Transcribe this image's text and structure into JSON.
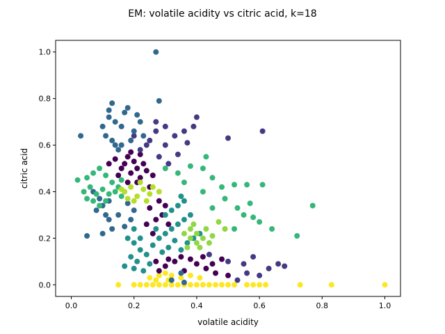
{
  "chart_data": {
    "type": "scatter",
    "title": "EM: volatile acidity vs citric acid, k=18",
    "xlabel": "volatile acidity",
    "ylabel": "citric acid",
    "xlim": [
      -0.05,
      1.05
    ],
    "ylim": [
      -0.05,
      1.05
    ],
    "xticks": [
      "0.0",
      "0.2",
      "0.4",
      "0.6",
      "0.8",
      "1.0"
    ],
    "yticks": [
      "0.0",
      "0.2",
      "0.4",
      "0.6",
      "0.8",
      "1.0"
    ],
    "grid": false,
    "legend": "none",
    "series": [
      {
        "color": "#fde725",
        "points": [
          [
            0.15,
            0.0
          ],
          [
            0.2,
            0.0
          ],
          [
            0.22,
            0.0
          ],
          [
            0.24,
            0.0
          ],
          [
            0.26,
            0.0
          ],
          [
            0.28,
            0.0
          ],
          [
            0.3,
            0.0
          ],
          [
            0.32,
            0.0
          ],
          [
            0.34,
            0.0
          ],
          [
            0.36,
            0.0
          ],
          [
            0.38,
            0.0
          ],
          [
            0.4,
            0.0
          ],
          [
            0.42,
            0.0
          ],
          [
            0.44,
            0.0
          ],
          [
            0.46,
            0.0
          ],
          [
            0.48,
            0.0
          ],
          [
            0.5,
            0.0
          ],
          [
            0.52,
            0.0
          ],
          [
            0.56,
            0.0
          ],
          [
            0.58,
            0.0
          ],
          [
            0.6,
            0.0
          ],
          [
            0.62,
            0.0
          ],
          [
            0.73,
            0.0
          ],
          [
            0.83,
            0.0
          ],
          [
            1.0,
            0.0
          ],
          [
            0.25,
            0.03
          ],
          [
            0.28,
            0.04
          ],
          [
            0.3,
            0.05
          ],
          [
            0.32,
            0.04
          ],
          [
            0.35,
            0.03
          ],
          [
            0.38,
            0.04
          ],
          [
            0.41,
            0.03
          ],
          [
            0.27,
            0.02
          ],
          [
            0.31,
            0.02
          ]
        ]
      },
      {
        "color": "#440154",
        "points": [
          [
            0.14,
            0.54
          ],
          [
            0.16,
            0.5
          ],
          [
            0.17,
            0.52
          ],
          [
            0.18,
            0.55
          ],
          [
            0.19,
            0.48
          ],
          [
            0.2,
            0.53
          ],
          [
            0.21,
            0.5
          ],
          [
            0.22,
            0.46
          ],
          [
            0.23,
            0.52
          ],
          [
            0.24,
            0.49
          ],
          [
            0.15,
            0.47
          ],
          [
            0.18,
            0.44
          ],
          [
            0.21,
            0.44
          ],
          [
            0.26,
            0.47
          ],
          [
            0.12,
            0.52
          ],
          [
            0.19,
            0.57
          ],
          [
            0.22,
            0.56
          ],
          [
            0.25,
            0.42
          ],
          [
            0.27,
            0.1
          ],
          [
            0.3,
            0.08
          ],
          [
            0.33,
            0.1
          ],
          [
            0.36,
            0.06
          ],
          [
            0.4,
            0.09
          ],
          [
            0.43,
            0.07
          ],
          [
            0.46,
            0.05
          ],
          [
            0.48,
            0.11
          ],
          [
            0.5,
            0.04
          ],
          [
            0.35,
            0.12
          ],
          [
            0.38,
            0.11
          ],
          [
            0.42,
            0.12
          ],
          [
            0.28,
            0.06
          ],
          [
            0.31,
            0.11
          ],
          [
            0.45,
            0.09
          ],
          [
            0.25,
            0.33
          ],
          [
            0.27,
            0.28
          ],
          [
            0.29,
            0.3
          ],
          [
            0.31,
            0.26
          ],
          [
            0.24,
            0.26
          ],
          [
            0.26,
            0.22
          ],
          [
            0.3,
            0.34
          ],
          [
            0.28,
            0.36
          ]
        ]
      },
      {
        "color": "#443a83",
        "points": [
          [
            0.22,
            0.58
          ],
          [
            0.25,
            0.62
          ],
          [
            0.27,
            0.66
          ],
          [
            0.3,
            0.6
          ],
          [
            0.33,
            0.64
          ],
          [
            0.36,
            0.66
          ],
          [
            0.39,
            0.68
          ],
          [
            0.28,
            0.55
          ],
          [
            0.31,
            0.52
          ],
          [
            0.34,
            0.56
          ],
          [
            0.24,
            0.6
          ],
          [
            0.27,
            0.7
          ],
          [
            0.4,
            0.72
          ],
          [
            0.2,
            0.64
          ],
          [
            0.3,
            0.68
          ],
          [
            0.5,
            0.63
          ],
          [
            0.61,
            0.66
          ],
          [
            0.37,
            0.61
          ],
          [
            0.53,
            0.02
          ],
          [
            0.56,
            0.05
          ],
          [
            0.6,
            0.04
          ],
          [
            0.63,
            0.07
          ],
          [
            0.66,
            0.09
          ],
          [
            0.68,
            0.08
          ],
          [
            0.55,
            0.09
          ],
          [
            0.58,
            0.12
          ],
          [
            0.44,
            0.13
          ],
          [
            0.5,
            0.1
          ]
        ]
      },
      {
        "color": "#31688e",
        "points": [
          [
            0.03,
            0.64
          ],
          [
            0.1,
            0.68
          ],
          [
            0.12,
            0.72
          ],
          [
            0.13,
            0.78
          ],
          [
            0.12,
            0.75
          ],
          [
            0.14,
            0.7
          ],
          [
            0.16,
            0.68
          ],
          [
            0.17,
            0.74
          ],
          [
            0.18,
            0.76
          ],
          [
            0.2,
            0.66
          ],
          [
            0.21,
            0.73
          ],
          [
            0.22,
            0.7
          ],
          [
            0.23,
            0.64
          ],
          [
            0.11,
            0.64
          ],
          [
            0.13,
            0.62
          ],
          [
            0.16,
            0.6
          ],
          [
            0.19,
            0.62
          ],
          [
            0.27,
            1.0
          ],
          [
            0.28,
            0.79
          ],
          [
            0.15,
            0.58
          ],
          [
            0.14,
            0.6
          ],
          [
            0.18,
            0.35
          ],
          [
            0.15,
            0.3
          ],
          [
            0.12,
            0.28
          ],
          [
            0.1,
            0.22
          ],
          [
            0.13,
            0.24
          ],
          [
            0.17,
            0.25
          ],
          [
            0.19,
            0.28
          ],
          [
            0.2,
            0.32
          ],
          [
            0.11,
            0.3
          ],
          [
            0.1,
            0.34
          ],
          [
            0.07,
            0.4
          ],
          [
            0.08,
            0.32
          ],
          [
            0.05,
            0.21
          ],
          [
            0.32,
            0.02
          ],
          [
            0.35,
            0.05
          ],
          [
            0.36,
            0.01
          ],
          [
            0.12,
            0.36
          ],
          [
            0.09,
            0.37
          ]
        ]
      },
      {
        "color": "#21918c",
        "points": [
          [
            0.18,
            0.2
          ],
          [
            0.2,
            0.18
          ],
          [
            0.22,
            0.15
          ],
          [
            0.19,
            0.12
          ],
          [
            0.21,
            0.1
          ],
          [
            0.24,
            0.13
          ],
          [
            0.26,
            0.17
          ],
          [
            0.28,
            0.2
          ],
          [
            0.3,
            0.22
          ],
          [
            0.32,
            0.24
          ],
          [
            0.34,
            0.26
          ],
          [
            0.36,
            0.28
          ],
          [
            0.33,
            0.19
          ],
          [
            0.35,
            0.15
          ],
          [
            0.37,
            0.18
          ],
          [
            0.39,
            0.2
          ],
          [
            0.41,
            0.22
          ],
          [
            0.29,
            0.14
          ],
          [
            0.31,
            0.16
          ],
          [
            0.27,
            0.24
          ],
          [
            0.25,
            0.09
          ],
          [
            0.23,
            0.06
          ],
          [
            0.2,
            0.07
          ],
          [
            0.17,
            0.08
          ],
          [
            0.3,
            0.3
          ],
          [
            0.32,
            0.32
          ],
          [
            0.34,
            0.34
          ],
          [
            0.36,
            0.36
          ],
          [
            0.38,
            0.3
          ],
          [
            0.2,
            0.24
          ],
          [
            0.22,
            0.2
          ],
          [
            0.35,
            0.38
          ]
        ]
      },
      {
        "color": "#35b779",
        "points": [
          [
            0.02,
            0.45
          ],
          [
            0.05,
            0.46
          ],
          [
            0.07,
            0.48
          ],
          [
            0.09,
            0.5
          ],
          [
            0.11,
            0.47
          ],
          [
            0.13,
            0.44
          ],
          [
            0.15,
            0.42
          ],
          [
            0.06,
            0.42
          ],
          [
            0.08,
            0.39
          ],
          [
            0.1,
            0.41
          ],
          [
            0.12,
            0.39
          ],
          [
            0.14,
            0.4
          ],
          [
            0.16,
            0.38
          ],
          [
            0.07,
            0.36
          ],
          [
            0.05,
            0.37
          ],
          [
            0.04,
            0.4
          ],
          [
            0.11,
            0.36
          ],
          [
            0.09,
            0.34
          ],
          [
            0.16,
            0.45
          ],
          [
            0.3,
            0.5
          ],
          [
            0.34,
            0.48
          ],
          [
            0.38,
            0.51
          ],
          [
            0.42,
            0.5
          ],
          [
            0.43,
            0.55
          ],
          [
            0.45,
            0.46
          ],
          [
            0.48,
            0.42
          ],
          [
            0.52,
            0.43
          ],
          [
            0.56,
            0.43
          ],
          [
            0.61,
            0.43
          ],
          [
            0.58,
            0.29
          ],
          [
            0.42,
            0.4
          ],
          [
            0.49,
            0.37
          ],
          [
            0.53,
            0.33
          ],
          [
            0.57,
            0.35
          ],
          [
            0.77,
            0.34
          ],
          [
            0.72,
            0.21
          ],
          [
            0.64,
            0.24
          ],
          [
            0.55,
            0.3
          ],
          [
            0.52,
            0.24
          ],
          [
            0.36,
            0.44
          ],
          [
            0.45,
            0.33
          ],
          [
            0.6,
            0.27
          ]
        ]
      },
      {
        "color": "#90d743",
        "points": [
          [
            0.38,
            0.24
          ],
          [
            0.4,
            0.22
          ],
          [
            0.42,
            0.2
          ],
          [
            0.4,
            0.18
          ],
          [
            0.38,
            0.2
          ],
          [
            0.36,
            0.22
          ],
          [
            0.43,
            0.24
          ],
          [
            0.45,
            0.21
          ],
          [
            0.41,
            0.16
          ],
          [
            0.44,
            0.18
          ],
          [
            0.39,
            0.26
          ],
          [
            0.47,
            0.27
          ],
          [
            0.49,
            0.24
          ],
          [
            0.37,
            0.16
          ]
        ]
      },
      {
        "color": "#b5de2b",
        "points": [
          [
            0.17,
            0.4
          ],
          [
            0.19,
            0.42
          ],
          [
            0.21,
            0.38
          ],
          [
            0.23,
            0.41
          ],
          [
            0.25,
            0.39
          ],
          [
            0.2,
            0.36
          ],
          [
            0.22,
            0.44
          ],
          [
            0.18,
            0.37
          ],
          [
            0.24,
            0.36
          ],
          [
            0.26,
            0.42
          ],
          [
            0.16,
            0.41
          ],
          [
            0.28,
            0.4
          ]
        ]
      }
    ]
  }
}
